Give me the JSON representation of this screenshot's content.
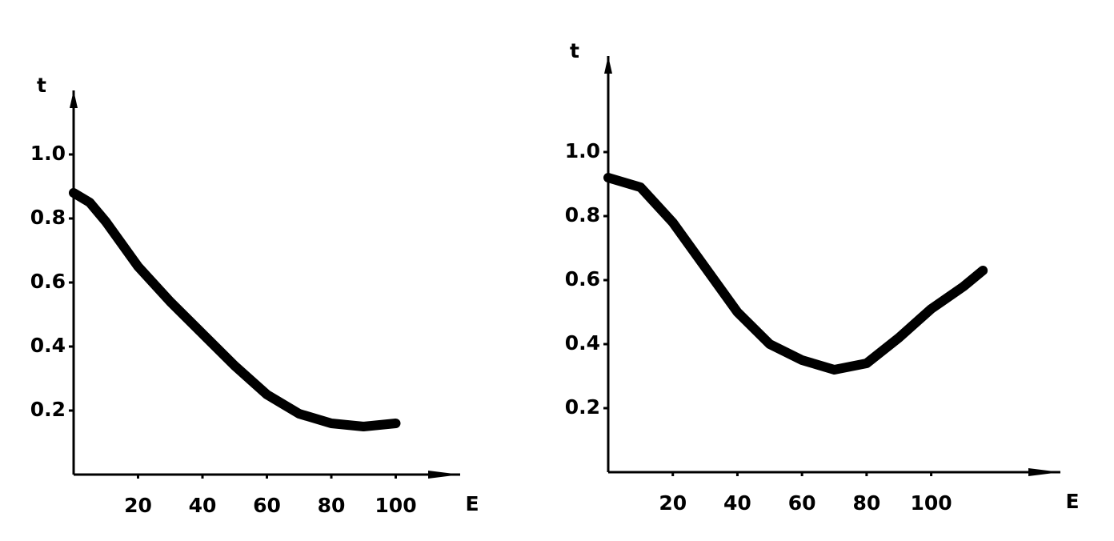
{
  "chart_data": [
    {
      "type": "line",
      "xlabel": "E",
      "ylabel": "t",
      "x": [
        0,
        5,
        10,
        20,
        30,
        40,
        50,
        60,
        70,
        80,
        90,
        100
      ],
      "series": [
        {
          "color": "#000000",
          "values": [
            0.88,
            0.85,
            0.79,
            0.65,
            0.54,
            0.44,
            0.34,
            0.25,
            0.19,
            0.16,
            0.15,
            0.16
          ]
        }
      ],
      "xlim": [
        0,
        120
      ],
      "ylim": [
        0,
        1.2
      ],
      "xticks": [
        20,
        40,
        60,
        80,
        100
      ],
      "yticks": [
        0.2,
        0.4,
        0.6,
        0.8,
        {
          "value": 1,
          "label": "1.0"
        }
      ]
    },
    {
      "type": "line",
      "xlabel": "E",
      "ylabel": "t",
      "x": [
        0,
        10,
        20,
        30,
        40,
        50,
        60,
        70,
        80,
        90,
        100,
        110,
        116
      ],
      "series": [
        {
          "color": "#000000",
          "values": [
            0.92,
            0.89,
            0.78,
            0.64,
            0.5,
            0.4,
            0.35,
            0.32,
            0.34,
            0.42,
            0.51,
            0.58,
            0.63
          ]
        }
      ],
      "xlim": [
        0,
        140
      ],
      "ylim": [
        0,
        1.3
      ],
      "xticks": [
        20,
        40,
        60,
        80,
        100
      ],
      "yticks": [
        0.2,
        0.4,
        0.6,
        0.8,
        {
          "value": 1,
          "label": "1.0"
        }
      ]
    }
  ]
}
